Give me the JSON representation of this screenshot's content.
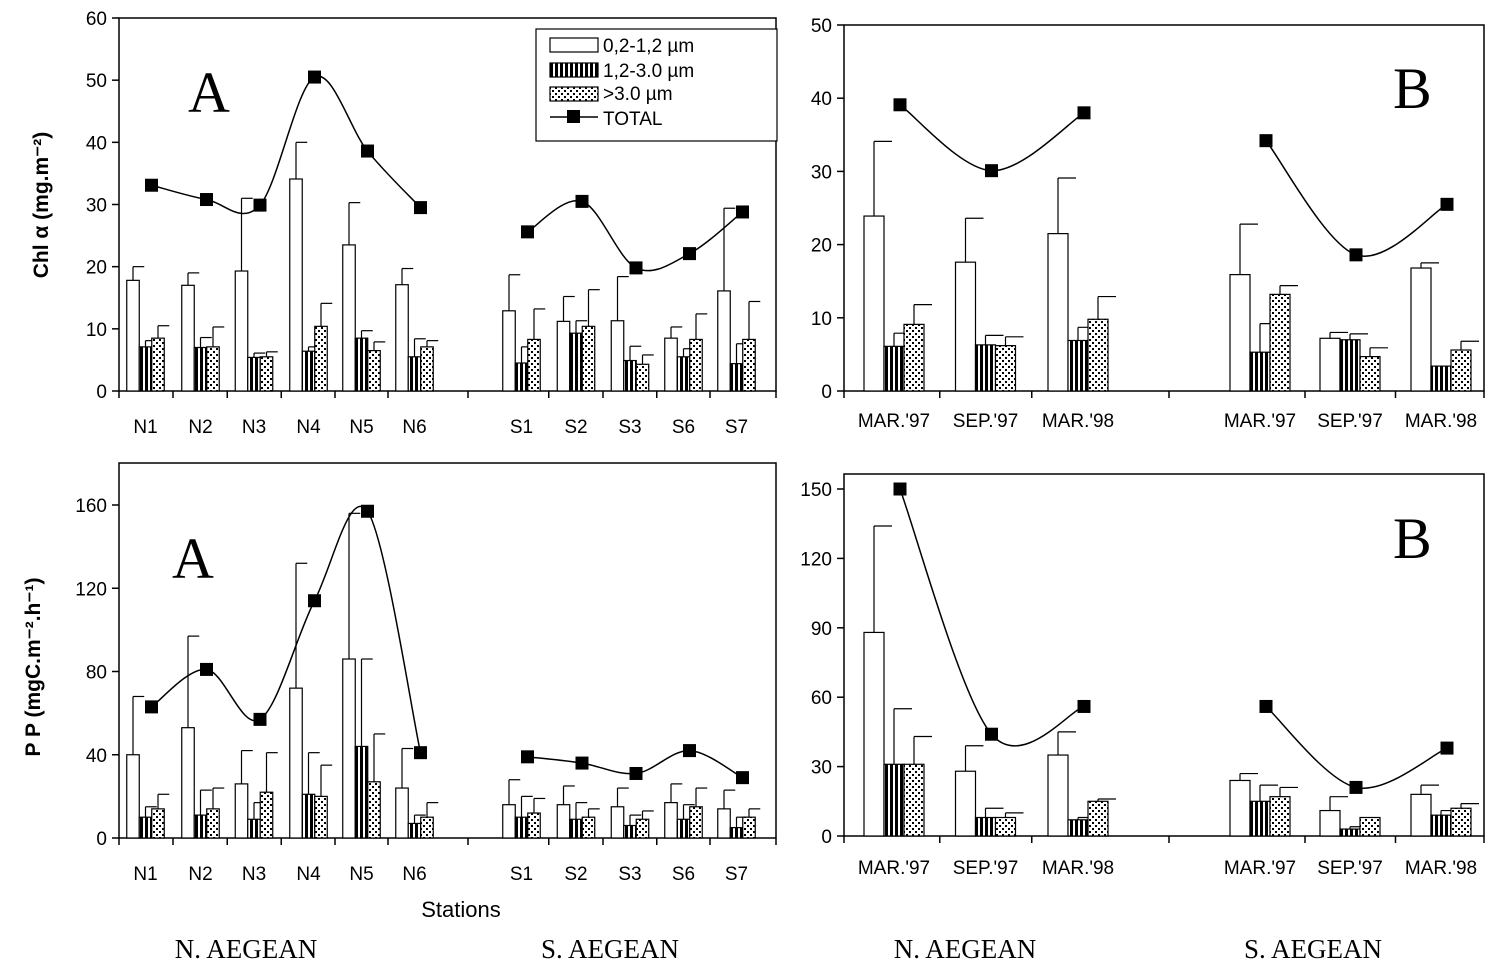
{
  "legend": {
    "items": [
      "0,2-1,2 µm",
      "1,2-3.0 µm",
      ">3.0  µm",
      "TOTAL"
    ]
  },
  "region_labels": [
    "N. AEGEAN",
    "S. AEGEAN",
    "N. AEGEAN",
    "S. AEGEAN"
  ],
  "chart_data": [
    {
      "type": "bar",
      "panel_label": "A",
      "ylabel": "Chl α (mg.m⁻²)",
      "ylim": [
        0,
        60
      ],
      "yticks": [
        0,
        10,
        20,
        30,
        40,
        50,
        60
      ],
      "groups": [
        {
          "region": "N. AEGEAN",
          "categories": [
            "N1",
            "N2",
            "N3",
            "N4",
            "N5",
            "N6"
          ]
        },
        {
          "region": "S. AEGEAN",
          "categories": [
            "S1",
            "S2",
            "S3",
            "S6",
            "S7"
          ]
        }
      ],
      "categories": [
        "N1",
        "N2",
        "N3",
        "N4",
        "N5",
        "N6",
        "S1",
        "S2",
        "S3",
        "S6",
        "S7"
      ],
      "series": [
        {
          "name": "0,2-1,2 µm",
          "values": [
            17.8,
            17.0,
            19.3,
            34.1,
            23.5,
            17.1,
            12.9,
            11.2,
            11.3,
            8.5,
            16.1
          ],
          "errors": [
            2.2,
            2.0,
            11.7,
            5.9,
            6.8,
            2.6,
            5.8,
            4.0,
            7.1,
            1.8,
            13.3
          ]
        },
        {
          "name": "1,2-3.0 µm",
          "values": [
            7.1,
            7.0,
            5.4,
            6.4,
            8.5,
            5.5,
            4.5,
            9.3,
            4.9,
            5.5,
            4.4
          ],
          "errors": [
            1.0,
            1.6,
            0.7,
            0.7,
            1.2,
            2.9,
            2.6,
            2.0,
            2.3,
            1.3,
            3.2
          ]
        },
        {
          "name": ">3.0  µm",
          "values": [
            8.5,
            7.1,
            5.5,
            10.4,
            6.5,
            7.1,
            8.3,
            10.4,
            4.3,
            8.3,
            8.3
          ],
          "errors": [
            2.0,
            3.2,
            0.8,
            3.7,
            1.4,
            1.0,
            4.9,
            5.9,
            1.5,
            4.1,
            6.1
          ]
        }
      ],
      "total": {
        "name": "TOTAL",
        "values": [
          33.1,
          30.8,
          29.9,
          50.5,
          38.6,
          29.5,
          25.6,
          30.5,
          19.8,
          22.1,
          28.8
        ]
      }
    },
    {
      "type": "bar",
      "panel_label": "B",
      "ylabel": "",
      "ylim": [
        0,
        50
      ],
      "yticks": [
        0,
        10,
        20,
        30,
        40,
        50
      ],
      "groups": [
        {
          "region": "N. AEGEAN",
          "categories": [
            "MAR.'97",
            "SEP.'97",
            "MAR.'98"
          ]
        },
        {
          "region": "S. AEGEAN",
          "categories": [
            "MAR.'97",
            "SEP.'97",
            "MAR.'98"
          ]
        }
      ],
      "categories": [
        "MAR.'97",
        "SEP.'97",
        "MAR.'98",
        "MAR.'97",
        "SEP.'97",
        "MAR.'98"
      ],
      "series": [
        {
          "name": "0,2-1,2 µm",
          "values": [
            23.9,
            17.6,
            21.5,
            15.9,
            7.2,
            16.8
          ],
          "errors": [
            10.2,
            6.0,
            7.6,
            6.9,
            0.8,
            0.7
          ]
        },
        {
          "name": "1,2-3.0 µm",
          "values": [
            6.1,
            6.3,
            6.9,
            5.3,
            7.0,
            3.4
          ],
          "errors": [
            1.8,
            1.3,
            1.8,
            3.9,
            0.8,
            0.0
          ]
        },
        {
          "name": ">3.0  µm",
          "values": [
            9.1,
            6.2,
            9.8,
            13.2,
            4.7,
            5.6
          ],
          "errors": [
            2.7,
            1.2,
            3.1,
            1.2,
            1.2,
            1.2
          ]
        }
      ],
      "total": {
        "name": "TOTAL",
        "values": [
          39.1,
          30.1,
          38.0,
          34.2,
          18.6,
          25.5
        ]
      }
    },
    {
      "type": "bar",
      "panel_label": "A",
      "ylabel": "P P (mgC.m⁻².h⁻¹)",
      "xlabel": "Stations",
      "ylim": [
        0,
        180
      ],
      "yticks": [
        0,
        40,
        80,
        120,
        160
      ],
      "groups": [
        {
          "region": "N. AEGEAN",
          "categories": [
            "N1",
            "N2",
            "N3",
            "N4",
            "N5",
            "N6"
          ]
        },
        {
          "region": "S. AEGEAN",
          "categories": [
            "S1",
            "S2",
            "S3",
            "S6",
            "S7"
          ]
        }
      ],
      "categories": [
        "N1",
        "N2",
        "N3",
        "N4",
        "N5",
        "N6",
        "S1",
        "S2",
        "S3",
        "S6",
        "S7"
      ],
      "series": [
        {
          "name": "0,2-1,2 µm",
          "values": [
            40,
            53,
            26,
            72,
            86,
            24,
            16,
            16,
            15,
            17,
            14
          ],
          "errors": [
            28,
            44,
            16,
            60,
            70,
            19,
            12,
            9,
            9,
            9,
            9
          ]
        },
        {
          "name": "1,2-3.0 µm",
          "values": [
            10,
            11,
            9,
            21,
            44,
            7,
            10,
            9,
            6,
            9,
            5
          ],
          "errors": [
            5,
            12,
            8,
            20,
            42,
            4,
            10,
            8,
            5,
            7,
            5
          ]
        },
        {
          "name": ">3.0  µm",
          "values": [
            14,
            14,
            22,
            20,
            27,
            10,
            12,
            10,
            9,
            15,
            10
          ],
          "errors": [
            7,
            10,
            19,
            15,
            23,
            7,
            7,
            4,
            4,
            9,
            4
          ]
        }
      ],
      "total": {
        "name": "TOTAL",
        "values": [
          63,
          81,
          57,
          114,
          157,
          41,
          39,
          36,
          31,
          42,
          29
        ]
      }
    },
    {
      "type": "bar",
      "panel_label": "B",
      "ylabel": "",
      "ylim": [
        0,
        160
      ],
      "yticks": [
        0,
        30,
        60,
        90,
        120,
        150
      ],
      "groups": [
        {
          "region": "N. AEGEAN",
          "categories": [
            "MAR.'97",
            "SEP.'97",
            "MAR.'98"
          ]
        },
        {
          "region": "S. AEGEAN",
          "categories": [
            "MAR.'97",
            "SEP.'97",
            "MAR.'98"
          ]
        }
      ],
      "categories": [
        "MAR.'97",
        "SEP.'97",
        "MAR.'98",
        "MAR.'97",
        "SEP.'97",
        "MAR.'98"
      ],
      "series": [
        {
          "name": "0,2-1,2 µm",
          "values": [
            88,
            28,
            35,
            24,
            11,
            18
          ],
          "errors": [
            46,
            11,
            10,
            3,
            6,
            4
          ]
        },
        {
          "name": "1,2-3.0 µm",
          "values": [
            31,
            8,
            7,
            15,
            3,
            9
          ],
          "errors": [
            24,
            4,
            1,
            7,
            1,
            2
          ]
        },
        {
          "name": ">3.0  µm",
          "values": [
            31,
            8,
            15,
            17,
            8,
            12
          ],
          "errors": [
            12,
            2,
            1,
            4,
            0,
            2
          ]
        }
      ],
      "total": {
        "name": "TOTAL",
        "values": [
          150,
          44,
          56,
          56,
          21,
          38
        ]
      }
    }
  ]
}
